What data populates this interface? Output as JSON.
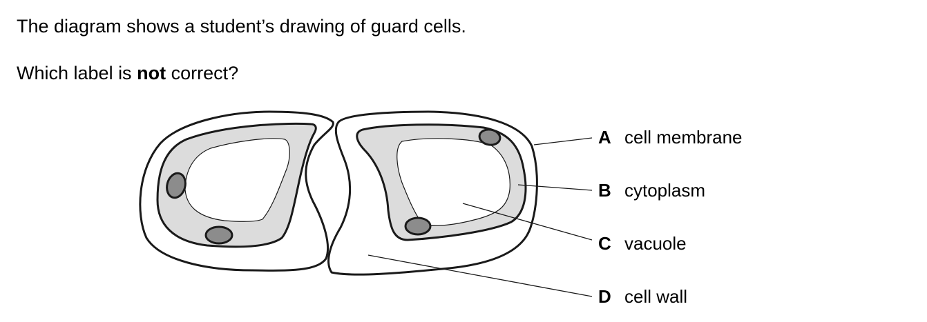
{
  "question": {
    "line1": "The diagram shows a student’s drawing of guard cells.",
    "line2_before": "Which label is ",
    "line2_bold": "not",
    "line2_after": " correct?"
  },
  "labels": [
    {
      "letter": "A",
      "text": "cell membrane"
    },
    {
      "letter": "B",
      "text": "cytoplasm"
    },
    {
      "letter": "C",
      "text": "vacuole"
    },
    {
      "letter": "D",
      "text": "cell wall"
    }
  ],
  "colors": {
    "line": "#1a1a1a",
    "cytoplasm": "#dcdcdc",
    "chloroplast": "#8c8c8c",
    "background": "#ffffff"
  }
}
